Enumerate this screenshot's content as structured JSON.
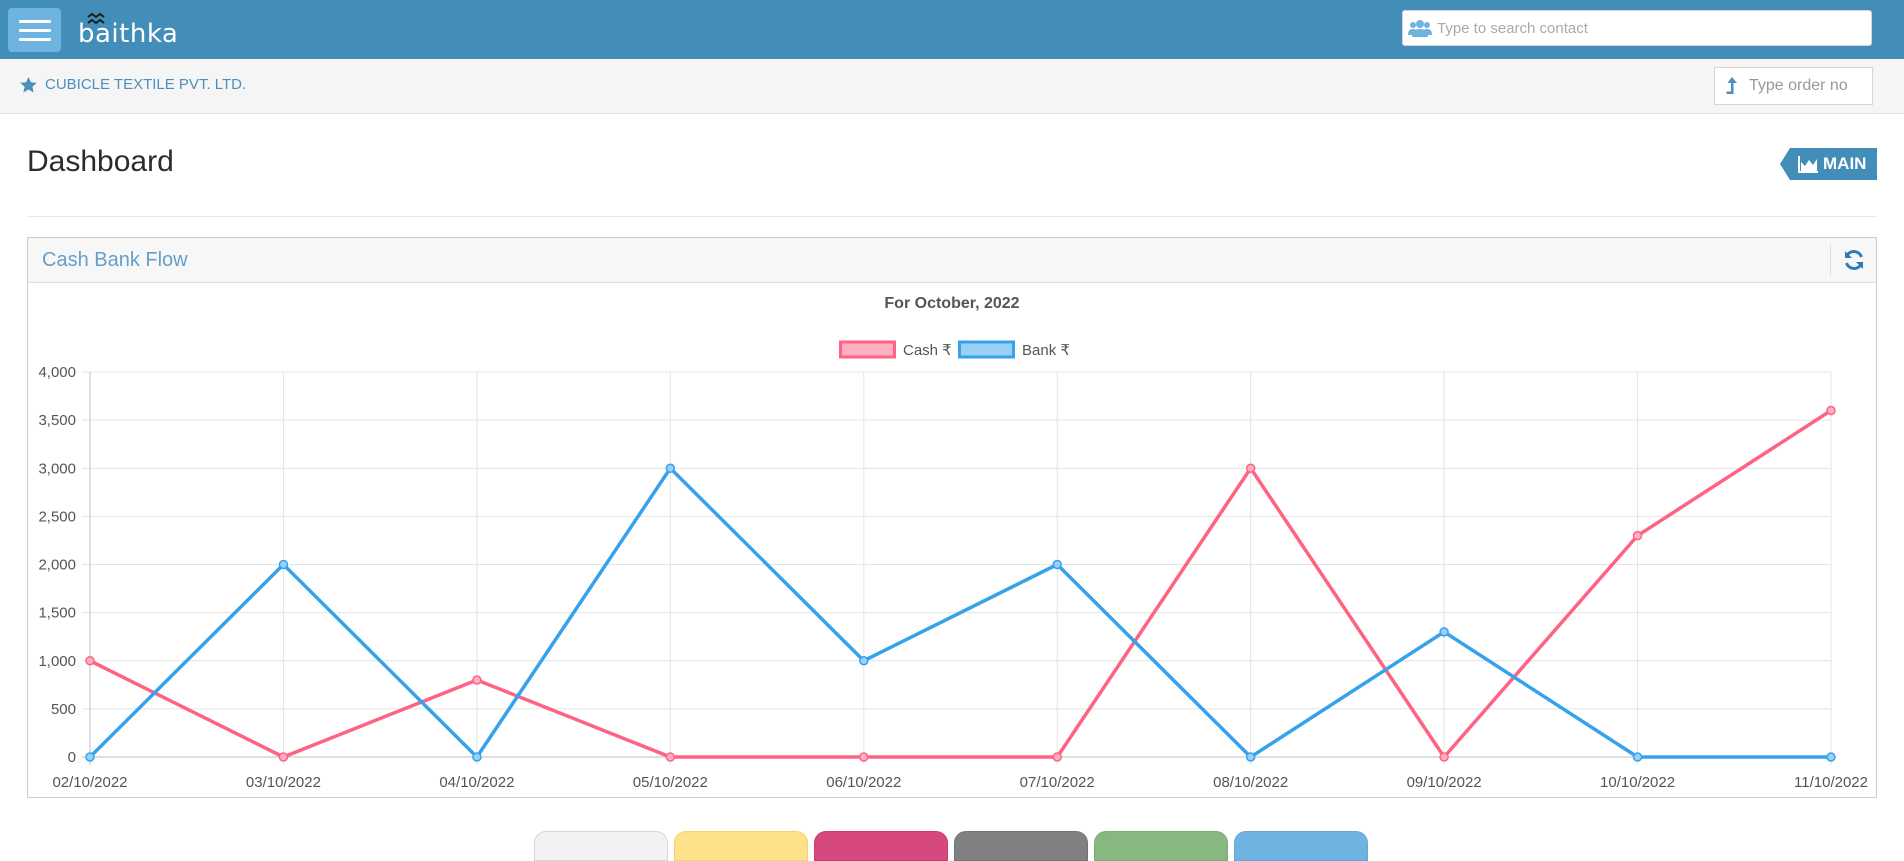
{
  "app": {
    "logo_text": "baithka",
    "search_placeholder": "Type to search contact"
  },
  "breadcrumb": {
    "company": "CUBICLE TEXTILE PVT. LTD.",
    "order_placeholder": "Type order no"
  },
  "page": {
    "title": "Dashboard",
    "badge_label": "MAIN"
  },
  "widget": {
    "title": "Cash Bank Flow"
  },
  "chart_data": {
    "type": "line",
    "title": "For October, 2022",
    "categories": [
      "02/10/2022",
      "03/10/2022",
      "04/10/2022",
      "05/10/2022",
      "06/10/2022",
      "07/10/2022",
      "08/10/2022",
      "09/10/2022",
      "10/10/2022",
      "11/10/2022"
    ],
    "series": [
      {
        "name": "Cash ₹",
        "color": "#ff6384",
        "fill": "#ffb1c1",
        "values": [
          1000,
          0,
          800,
          0,
          0,
          0,
          3000,
          0,
          2300,
          3600
        ]
      },
      {
        "name": "Bank ₹",
        "color": "#36a2eb",
        "fill": "#9ad0f5",
        "values": [
          0,
          2000,
          0,
          3000,
          1000,
          2000,
          0,
          1300,
          0,
          0
        ]
      }
    ],
    "ylim": [
      0,
      4000
    ],
    "yticks": [
      "0",
      "500",
      "1,000",
      "1,500",
      "2,000",
      "2,500",
      "3,000",
      "3,500",
      "4,000"
    ],
    "ytick_values": [
      0,
      500,
      1000,
      1500,
      2000,
      2500,
      3000,
      3500,
      4000
    ],
    "grid": true,
    "legend": "top"
  },
  "bottom_tabs": [
    {
      "color": "#f2f2f2",
      "border": "#d6d6d6"
    },
    {
      "color": "#fee188",
      "border": "#f2d36d"
    },
    {
      "color": "#d6487e",
      "border": "#c93d72"
    },
    {
      "color": "#808080",
      "border": "#747474"
    },
    {
      "color": "#87b87f",
      "border": "#7cae74"
    },
    {
      "color": "#6fb3e0",
      "border": "#64a8d6"
    }
  ]
}
